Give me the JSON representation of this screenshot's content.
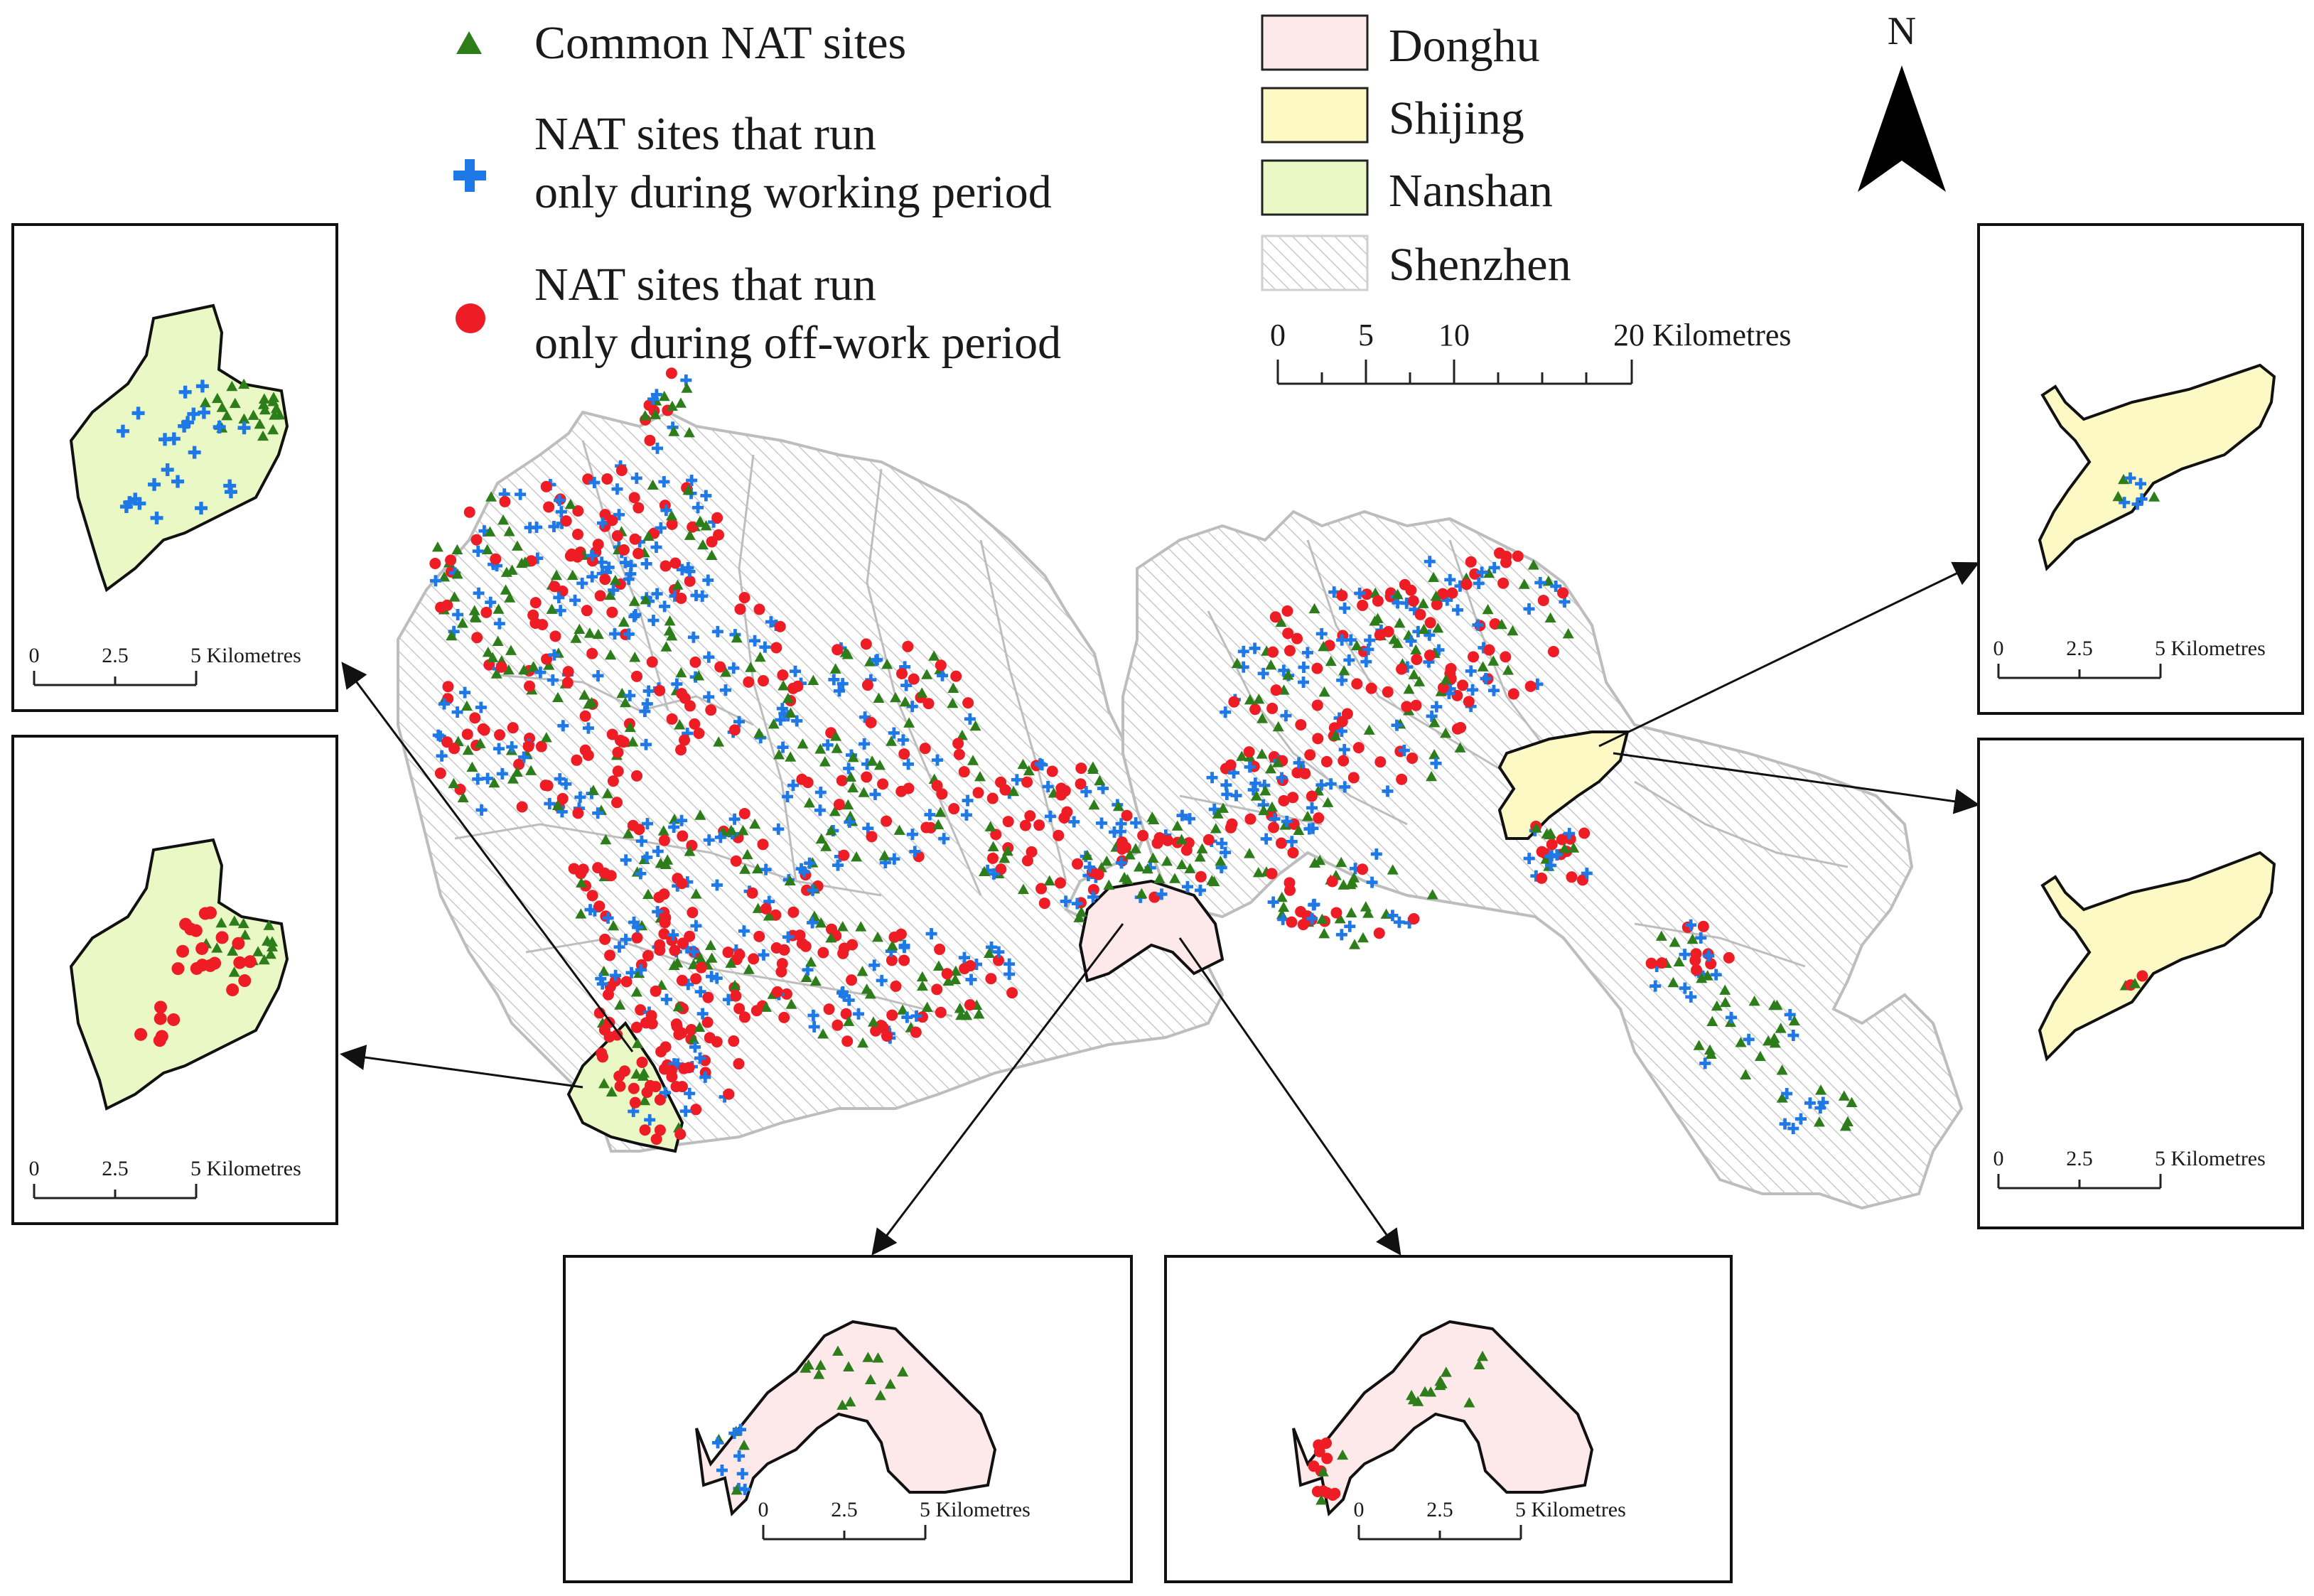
{
  "legend_points": {
    "common": {
      "label": "Common NAT sites",
      "color": "#2e7d1b",
      "symbol": "triangle-icon"
    },
    "working_line1": "NAT sites that run",
    "working_line2": "only during working period",
    "working_color": "#1e78e6",
    "working_symbol": "cross-icon",
    "offwork_line1": "NAT sites that run",
    "offwork_line2": "only during off-work period",
    "offwork_color": "#ee1c25",
    "offwork_symbol": "dot-icon"
  },
  "legend_areas": [
    {
      "label": "Donghu",
      "fill": "#fde8ea"
    },
    {
      "label": "Shijing",
      "fill": "#fdf9c4"
    },
    {
      "label": "Nanshan",
      "fill": "#eaf8c6"
    },
    {
      "label": "Shenzhen",
      "fill": "hatched"
    }
  ],
  "north_label": "N",
  "main_scale": {
    "ticks": [
      "0",
      "5",
      "10"
    ],
    "end_label": "20 Kilometres"
  },
  "inset_scale": {
    "ticks": [
      "0",
      "2.5"
    ],
    "end_label": "5 Kilometres"
  }
}
